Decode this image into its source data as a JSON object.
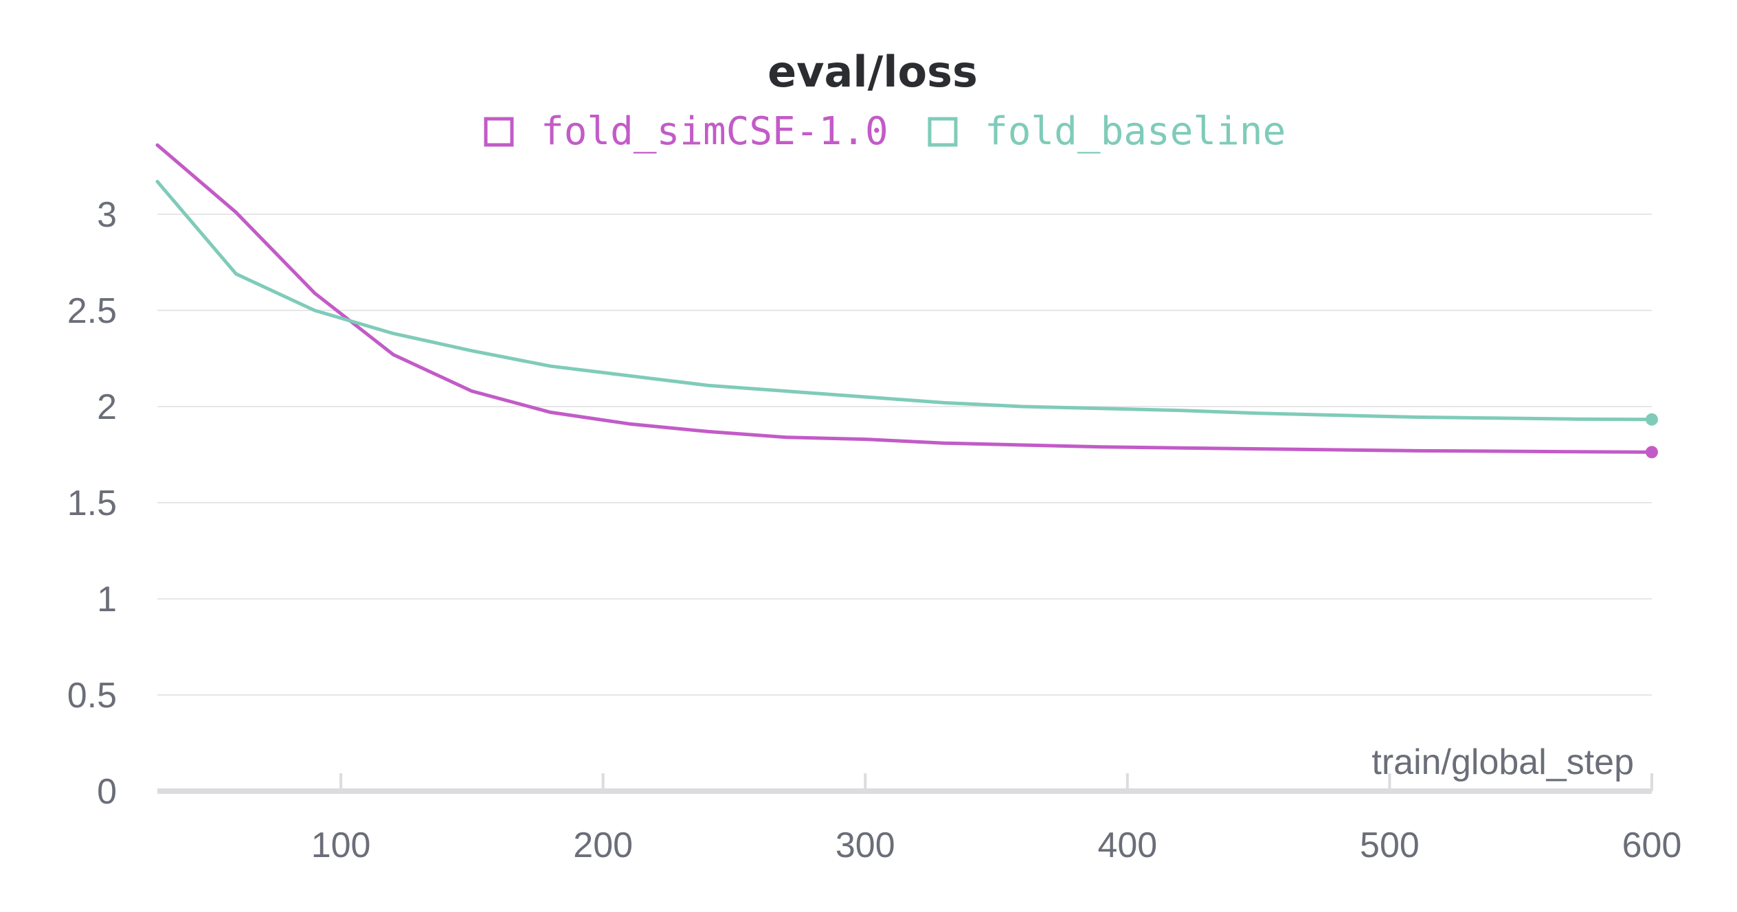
{
  "chart_data": {
    "type": "line",
    "title": "eval/loss",
    "xlabel": "train/global_step",
    "ylabel": "",
    "xlim": [
      30,
      600
    ],
    "ylim": [
      0,
      3.4
    ],
    "x_ticks": [
      100,
      200,
      300,
      400,
      500,
      600
    ],
    "y_ticks": [
      0,
      0.5,
      1,
      1.5,
      2,
      2.5,
      3
    ],
    "x_tick_labels": [
      "100",
      "200",
      "300",
      "400",
      "500",
      "600"
    ],
    "y_tick_labels": [
      "0",
      "0.5",
      "1",
      "1.5",
      "2",
      "2.5",
      "3"
    ],
    "grid": true,
    "legend_position": "top-center",
    "series": [
      {
        "name": "fold_simCSE-1.0",
        "color": "#c25bc7",
        "x": [
          30,
          60,
          90,
          120,
          150,
          180,
          210,
          240,
          270,
          300,
          330,
          360,
          390,
          420,
          450,
          480,
          510,
          540,
          570,
          600
        ],
        "y": [
          3.36,
          3.01,
          2.59,
          2.27,
          2.08,
          1.97,
          1.91,
          1.87,
          1.84,
          1.83,
          1.81,
          1.8,
          1.79,
          1.785,
          1.78,
          1.775,
          1.77,
          1.768,
          1.765,
          1.763
        ]
      },
      {
        "name": "fold_baseline",
        "color": "#7fcbb9",
        "x": [
          30,
          60,
          90,
          120,
          150,
          180,
          210,
          240,
          270,
          300,
          330,
          360,
          390,
          420,
          450,
          480,
          510,
          540,
          570,
          600
        ],
        "y": [
          3.17,
          2.69,
          2.5,
          2.38,
          2.29,
          2.21,
          2.16,
          2.11,
          2.08,
          2.05,
          2.02,
          2.0,
          1.99,
          1.98,
          1.965,
          1.955,
          1.945,
          1.94,
          1.935,
          1.933
        ]
      }
    ]
  }
}
